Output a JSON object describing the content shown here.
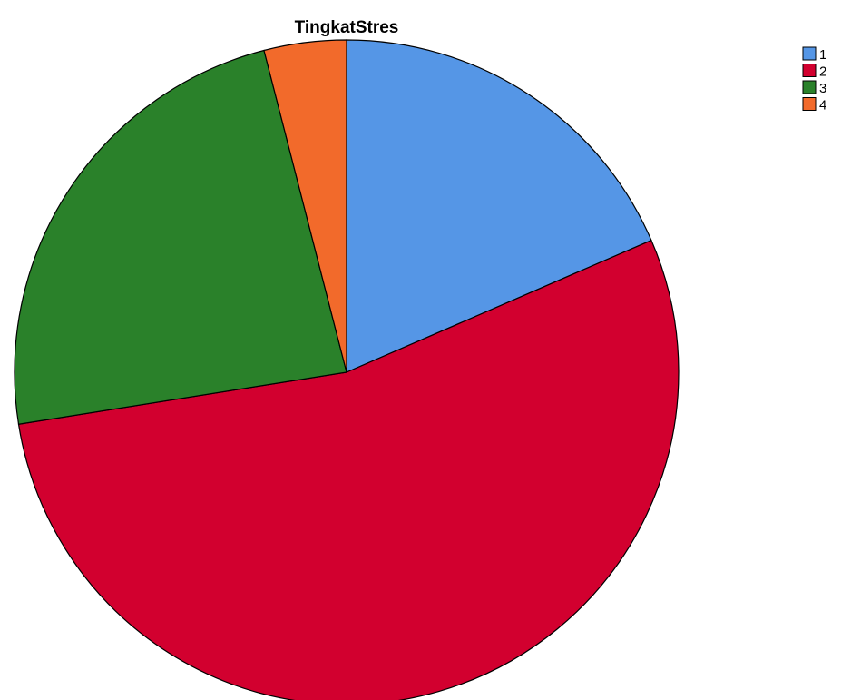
{
  "chart_data": {
    "type": "pie",
    "title": "TingkatStres",
    "categories": [
      "1",
      "2",
      "3",
      "4"
    ],
    "values": [
      18.5,
      54.0,
      23.5,
      4.0
    ],
    "colors": [
      "#5596e6",
      "#d2002f",
      "#2a812a",
      "#f26a2b"
    ],
    "start_angle": "12 o'clock",
    "direction": "clockwise",
    "legend": {
      "position": "top-right",
      "entries": [
        "1",
        "2",
        "3",
        "4"
      ]
    }
  }
}
